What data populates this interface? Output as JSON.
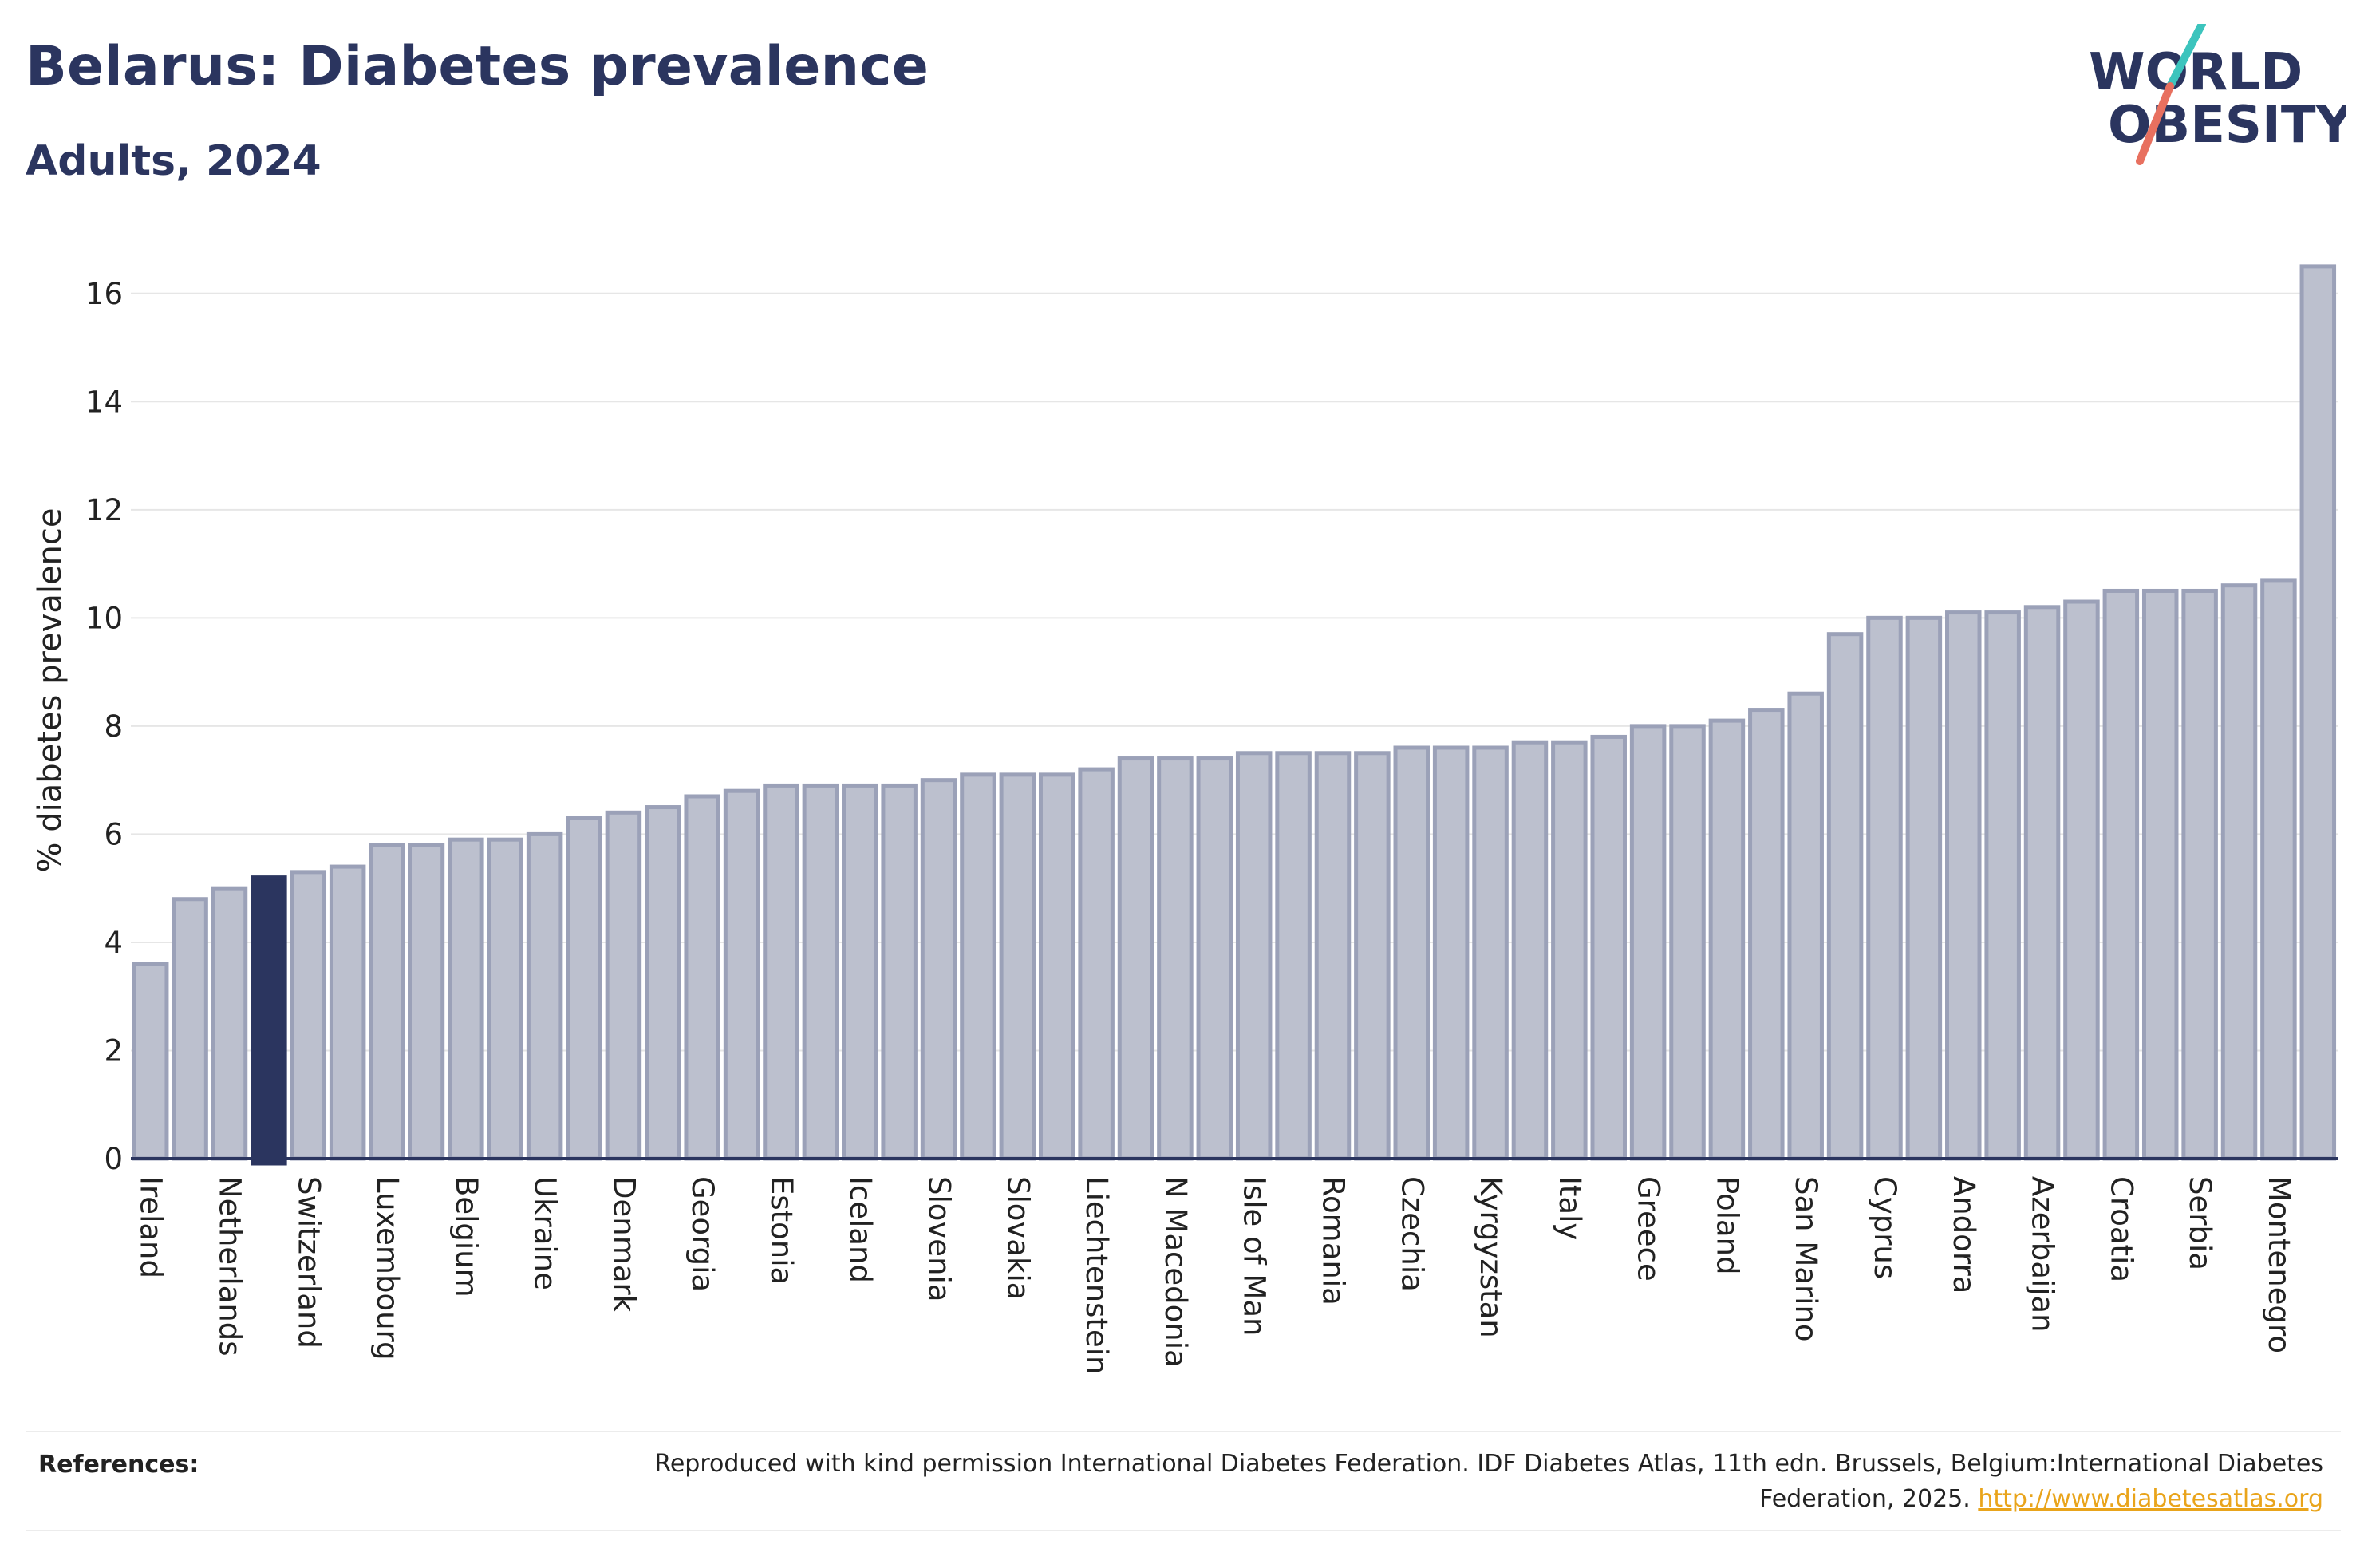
{
  "header": {
    "title": "Belarus: Diabetes prevalence",
    "subtitle": "Adults, 2024"
  },
  "logo": {
    "line1": "WORLD",
    "line2": "OBESITY",
    "colors": {
      "text": "#2b355f",
      "slash_top": "#3cc4bd",
      "slash_bottom": "#e8705f"
    }
  },
  "chart_data": {
    "type": "bar",
    "ylabel": "% diabetes prevalence",
    "ylim": [
      0,
      17
    ],
    "yticks": [
      0,
      2,
      4,
      6,
      8,
      10,
      12,
      14,
      16
    ],
    "grid": true,
    "bar_color": "#bcc0ce",
    "bar_edge_color": "#9ba1b8",
    "highlight_color": "#2b355f",
    "highlight_index": 3,
    "categories": [
      "Ireland",
      "",
      "Netherlands",
      "",
      "Switzerland",
      "",
      "Luxembourg",
      "",
      "Belgium",
      "",
      "Ukraine",
      "",
      "Denmark",
      "",
      "Georgia",
      "",
      "Estonia",
      "",
      "Iceland",
      "",
      "Slovenia",
      "",
      "Slovakia",
      "",
      "Liechtenstein",
      "",
      "N Macedonia",
      "",
      "Isle of Man",
      "",
      "Romania",
      "",
      "Czechia",
      "",
      "Kyrgyzstan",
      "",
      "Italy",
      "",
      "Greece",
      "",
      "Poland",
      "",
      "San Marino",
      "",
      "Cyprus",
      "",
      "Andorra",
      "",
      "Azerbaijan",
      "",
      "Croatia",
      "",
      "Serbia",
      "",
      "Montenegro",
      ""
    ],
    "values": [
      3.6,
      4.8,
      5.0,
      5.2,
      5.3,
      5.4,
      5.8,
      5.8,
      5.9,
      5.9,
      6.0,
      6.3,
      6.4,
      6.5,
      6.7,
      6.8,
      6.9,
      6.9,
      6.9,
      6.9,
      7.0,
      7.1,
      7.1,
      7.1,
      7.2,
      7.4,
      7.4,
      7.4,
      7.5,
      7.5,
      7.5,
      7.5,
      7.6,
      7.6,
      7.6,
      7.7,
      7.7,
      7.8,
      8.0,
      8.0,
      8.1,
      8.3,
      8.6,
      9.7,
      10.0,
      10.0,
      10.1,
      10.1,
      10.2,
      10.3,
      10.5,
      10.5,
      10.5,
      10.6,
      10.7,
      16.5
    ]
  },
  "footer": {
    "references_label": "References:",
    "reference_text": "Reproduced with kind permission International Diabetes Federation. IDF Diabetes Atlas, 11th edn. Brussels, Belgium:International Diabetes Federation, 2025.",
    "reference_link": "http://www.diabetesatlas.org"
  }
}
